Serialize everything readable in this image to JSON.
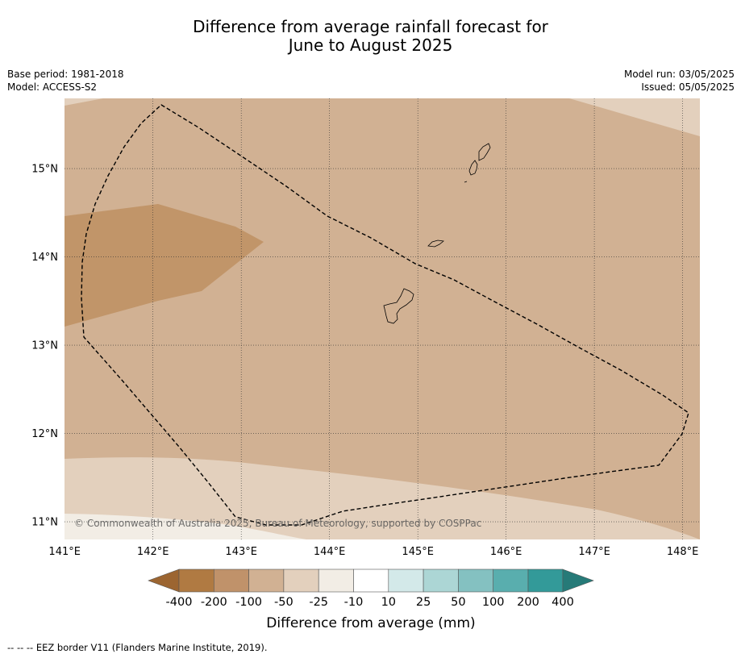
{
  "title": {
    "line1": "Difference from average rainfall forecast for",
    "line2": "June to August 2025"
  },
  "meta_left": {
    "base_period": "Base period: 1981-2018",
    "model": "Model: ACCESS-S2"
  },
  "meta_right": {
    "model_run": "Model run: 03/05/2025",
    "issued": "Issued: 05/05/2025"
  },
  "map": {
    "lon_labels": [
      "141°E",
      "142°E",
      "143°E",
      "144°E",
      "145°E",
      "146°E",
      "147°E",
      "148°E"
    ],
    "lat_labels": [
      "15°N",
      "14°N",
      "13°N",
      "12°N",
      "11°N"
    ],
    "copyright": "© Commonwealth of Australia 2025, Bureau of Meteorology, supported by COSPPac",
    "colors": {
      "cat_minus100_to_minus50": "#d1b193",
      "cat_minus200_to_minus100": "#c19569",
      "cat_minus50_to_minus25": "#e3d0bd",
      "cat_minus25_to_minus10": "#f2ede5",
      "eez_line": "#000000"
    }
  },
  "legend": {
    "tick_labels": [
      "-400",
      "-200",
      "-100",
      "-50",
      "-25",
      "-10",
      "10",
      "25",
      "50",
      "100",
      "200",
      "400"
    ],
    "title": "Difference from average (mm)",
    "colors": [
      "#9c6531",
      "#b07a42",
      "#c0926a",
      "#d1b193",
      "#e3d0bd",
      "#f2ede5",
      "#ffffff",
      "#d3e9e9",
      "#acd6d5",
      "#84c1c1",
      "#59aeae",
      "#339a99",
      "#267a78"
    ]
  },
  "footer": "--  --  -- EEZ border V11 (Flanders Marine Institute, 2019)."
}
